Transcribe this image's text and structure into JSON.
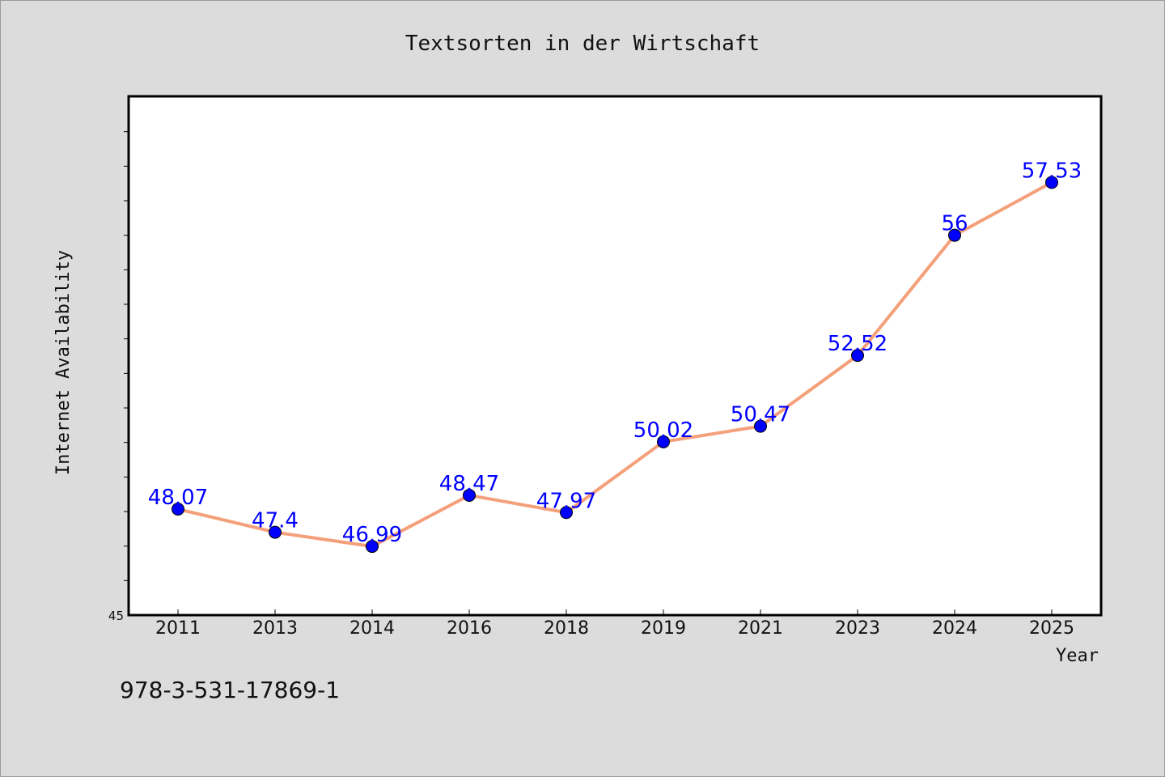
{
  "chart_data": {
    "type": "line",
    "title": "Textsorten in der Wirtschaft",
    "xlabel": "Year",
    "ylabel": "Internet Availability",
    "categories": [
      "2011",
      "2013",
      "2014",
      "2016",
      "2018",
      "2019",
      "2021",
      "2023",
      "2024",
      "2025"
    ],
    "values": [
      48.07,
      47.4,
      46.99,
      48.47,
      47.97,
      50.02,
      50.47,
      52.52,
      56,
      57.53
    ],
    "value_labels": [
      "48.07",
      "47.4",
      "46.99",
      "48.47",
      "47.97",
      "50.02",
      "50.47",
      "52.52",
      "56",
      "57.53"
    ],
    "ylim": [
      45,
      60
    ],
    "y_tick_step": 1,
    "y_tick_labels_shown": [
      "45"
    ],
    "grid": false,
    "line_color": "#f4a07a",
    "marker_color": "#0000ff",
    "label_color": "#0000ff"
  },
  "footer": {
    "isbn": "978-3-531-17869-1"
  }
}
